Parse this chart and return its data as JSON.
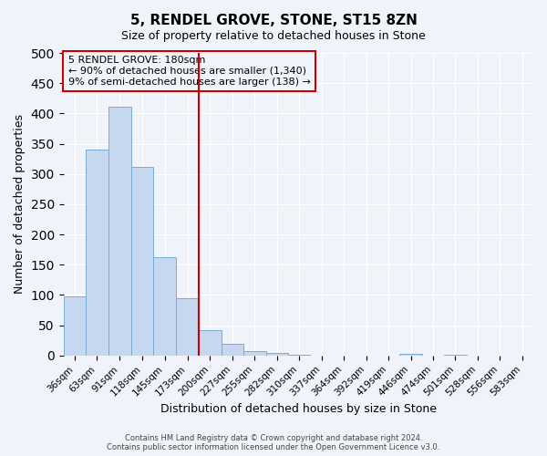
{
  "title": "5, RENDEL GROVE, STONE, ST15 8ZN",
  "subtitle": "Size of property relative to detached houses in Stone",
  "xlabel": "Distribution of detached houses by size in Stone",
  "ylabel": "Number of detached properties",
  "bar_values": [
    97,
    341,
    411,
    311,
    163,
    95,
    42,
    19,
    8,
    5,
    1,
    0,
    0,
    0,
    0,
    3,
    0,
    2,
    0,
    0,
    0
  ],
  "bar_labels": [
    "36sqm",
    "63sqm",
    "91sqm",
    "118sqm",
    "145sqm",
    "173sqm",
    "200sqm",
    "227sqm",
    "255sqm",
    "282sqm",
    "310sqm",
    "337sqm",
    "364sqm",
    "392sqm",
    "419sqm",
    "446sqm",
    "474sqm",
    "501sqm",
    "528sqm",
    "556sqm",
    "583sqm"
  ],
  "bin_edges": [
    22.5,
    49.5,
    76.5,
    104.5,
    131.5,
    158.5,
    186.5,
    213.5,
    240.5,
    267.5,
    294.5,
    321.5,
    348.5,
    375.5,
    402.5,
    429.5,
    456.5,
    483.5,
    510.5,
    537.5,
    564.5,
    591.5
  ],
  "bar_color": "#c5d8f0",
  "bar_edge_color": "#7aadd4",
  "vline_x": 186.5,
  "vline_color": "#cc0000",
  "annotation_box_color": "#cc0000",
  "annotation_lines": [
    "5 RENDEL GROVE: 180sqm",
    "← 90% of detached houses are smaller (1,340)",
    "9% of semi-detached houses are larger (138) →"
  ],
  "ylim": [
    0,
    500
  ],
  "yticks": [
    0,
    50,
    100,
    150,
    200,
    250,
    300,
    350,
    400,
    450,
    500
  ],
  "footer_line1": "Contains HM Land Registry data © Crown copyright and database right 2024.",
  "footer_line2": "Contains public sector information licensed under the Open Government Licence v3.0.",
  "background_color": "#f0f4fa",
  "grid_color": "#ffffff"
}
